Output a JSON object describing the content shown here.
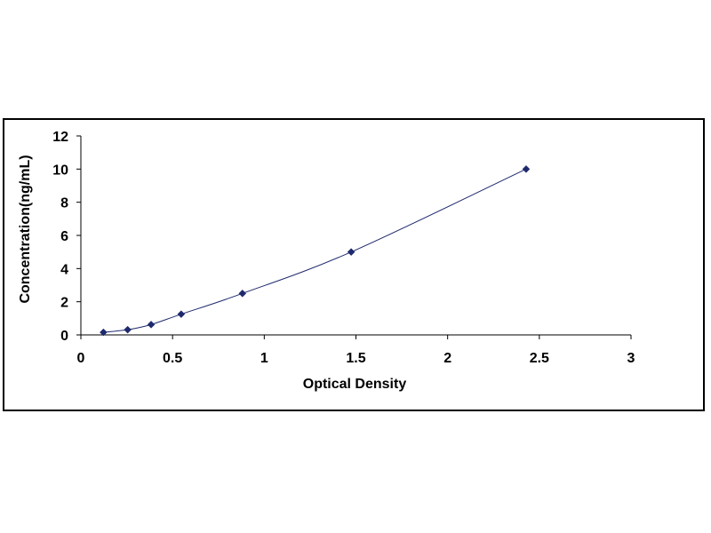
{
  "chart_data": {
    "type": "scatter",
    "title": "",
    "xlabel": "Optical Density",
    "ylabel": "Concentration(ng/mL)",
    "xlim": [
      0,
      3
    ],
    "ylim": [
      0,
      12
    ],
    "x_ticks": [
      "0",
      "0.5",
      "1",
      "1.5",
      "2",
      "2.5",
      "3"
    ],
    "y_ticks": [
      "0",
      "2",
      "4",
      "6",
      "8",
      "10",
      "12"
    ],
    "grid": false,
    "legend": "none",
    "series": [
      {
        "x": [
          0.123,
          0.255,
          0.383,
          0.547,
          0.881,
          1.474,
          2.428
        ],
        "y": [
          0.156,
          0.312,
          0.625,
          1.25,
          2.5,
          5,
          10
        ],
        "marker": "diamond",
        "trendline": "smooth",
        "color": "#1f2a6e"
      }
    ]
  }
}
